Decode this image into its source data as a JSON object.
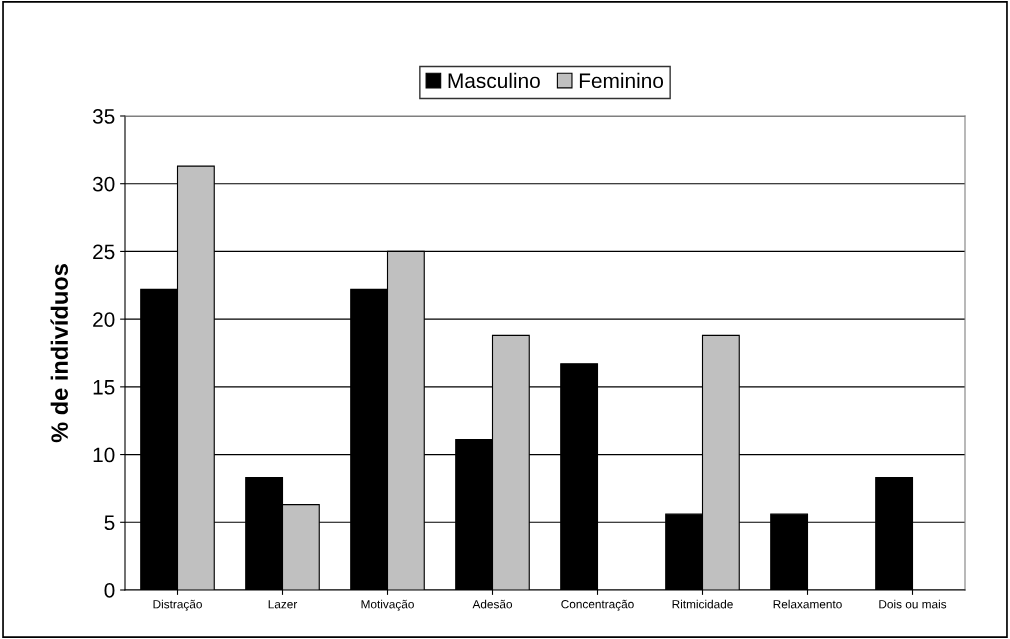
{
  "chart_data": {
    "type": "bar",
    "ylabel": "% de indivíduos",
    "categories": [
      "Distração",
      "Lazer",
      "Motivação",
      "Adesão",
      "Concentração",
      "Ritmicidade",
      "Relaxamento",
      "Dois ou mais"
    ],
    "series": [
      {
        "name": "Masculino",
        "color": "#000000",
        "values": [
          22.2,
          8.3,
          22.2,
          11.1,
          16.7,
          5.6,
          5.6,
          8.3
        ]
      },
      {
        "name": "Feminino",
        "color": "#c0c0c0",
        "values": [
          31.3,
          6.3,
          25.0,
          18.8,
          0,
          18.8,
          0,
          0
        ]
      }
    ],
    "ylim": [
      0,
      35
    ],
    "yticks": [
      0,
      5,
      10,
      15,
      20,
      25,
      30,
      35
    ],
    "grid": "y",
    "legend": "top"
  }
}
